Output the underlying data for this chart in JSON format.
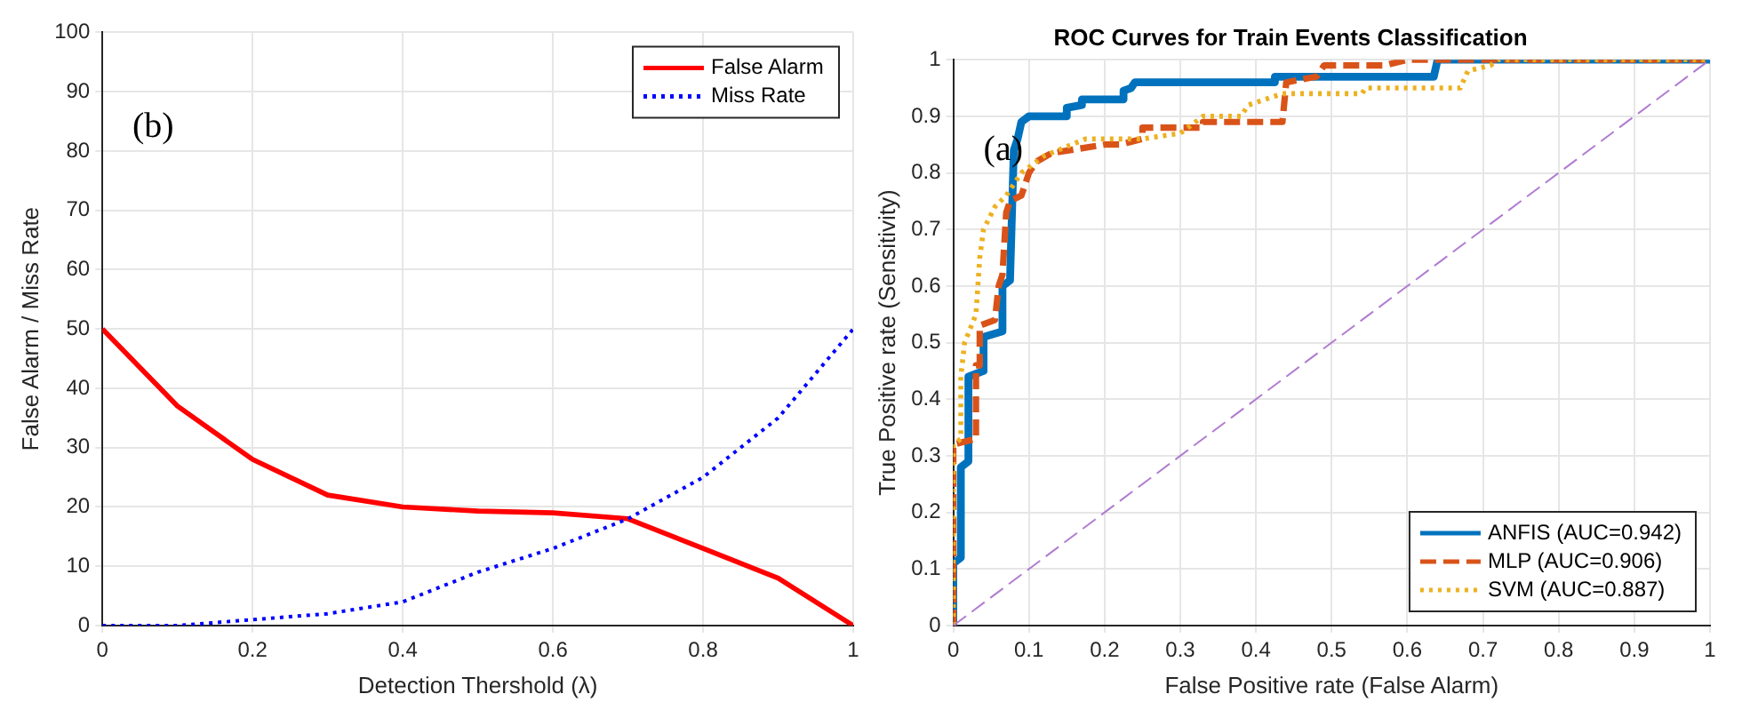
{
  "chart_data": [
    {
      "type": "line",
      "xlabel": "Detection Thershold (λ)",
      "ylabel": "False Alarm / Miss Rate",
      "x": [
        0,
        0.1,
        0.2,
        0.3,
        0.4,
        0.5,
        0.6,
        0.7,
        0.8,
        0.9,
        1
      ],
      "series": [
        {
          "name": "False Alarm",
          "color": "#ff0000",
          "line_style": "solid",
          "values": [
            50,
            37,
            28,
            22,
            20,
            19.3,
            19,
            18,
            13,
            8,
            0
          ]
        },
        {
          "name": "Miss Rate",
          "color": "#0000ff",
          "line_style": "dotted",
          "values": [
            0,
            0,
            1,
            2,
            4,
            9,
            13,
            18,
            25,
            35,
            50
          ]
        }
      ],
      "xlim": [
        0,
        1
      ],
      "xticks": [
        0,
        0.2,
        0.4,
        0.6,
        0.8,
        1
      ],
      "ylim": [
        0,
        100
      ],
      "yticks": [
        0,
        10,
        20,
        30,
        40,
        50,
        60,
        70,
        80,
        90,
        100
      ],
      "grid": true,
      "legend": "top right",
      "marker": "none",
      "annotations": [
        "(b)"
      ]
    },
    {
      "type": "line",
      "title": "ROC Curves for Train Events Classification",
      "xlabel": "False Positive rate (False Alarm)",
      "ylabel": "True Positive rate (Sensitivity)",
      "series": [
        {
          "name": "ANFIS (AUC=0.942)",
          "color": "#0072bd",
          "line_style": "solid",
          "x": [
            0,
            0,
            0.01,
            0.01,
            0.02,
            0.02,
            0.04,
            0.04,
            0.065,
            0.065,
            0.075,
            0.08,
            0.085,
            0.09,
            0.1,
            0.15,
            0.15,
            0.17,
            0.17,
            0.225,
            0.225,
            0.235,
            0.24,
            0.425,
            0.425,
            0.635,
            0.64,
            1
          ],
          "values": [
            0,
            0.11,
            0.12,
            0.28,
            0.29,
            0.44,
            0.45,
            0.51,
            0.52,
            0.6,
            0.61,
            0.84,
            0.86,
            0.89,
            0.9,
            0.9,
            0.915,
            0.92,
            0.93,
            0.93,
            0.945,
            0.95,
            0.96,
            0.96,
            0.97,
            0.97,
            1,
            1
          ]
        },
        {
          "name": "MLP (AUC=0.906)",
          "color": "#d95319",
          "line_style": "dashed",
          "x": [
            0,
            0,
            0.03,
            0.03,
            0.035,
            0.035,
            0.055,
            0.06,
            0.065,
            0.07,
            0.075,
            0.09,
            0.1,
            0.11,
            0.13,
            0.2,
            0.22,
            0.25,
            0.25,
            0.33,
            0.33,
            0.435,
            0.44,
            0.48,
            0.49,
            0.57,
            0.6,
            1
          ],
          "values": [
            0,
            0.32,
            0.33,
            0.46,
            0.46,
            0.53,
            0.54,
            0.6,
            0.62,
            0.73,
            0.75,
            0.76,
            0.8,
            0.82,
            0.835,
            0.85,
            0.85,
            0.86,
            0.88,
            0.88,
            0.89,
            0.89,
            0.96,
            0.97,
            0.99,
            0.99,
            1,
            1
          ]
        },
        {
          "name": "SVM (AUC=0.887)",
          "color": "#edb120",
          "line_style": "dotted",
          "x": [
            0,
            0,
            0.01,
            0.01,
            0.015,
            0.03,
            0.035,
            0.04,
            0.055,
            0.07,
            0.09,
            0.1,
            0.12,
            0.175,
            0.25,
            0.3,
            0.33,
            0.38,
            0.39,
            0.435,
            0.54,
            0.545,
            0.67,
            0.68,
            0.71,
            0.72,
            1
          ],
          "values": [
            0,
            0.32,
            0.33,
            0.44,
            0.5,
            0.55,
            0.65,
            0.7,
            0.74,
            0.76,
            0.8,
            0.81,
            0.83,
            0.86,
            0.86,
            0.87,
            0.9,
            0.9,
            0.92,
            0.94,
            0.94,
            0.95,
            0.95,
            0.98,
            0.99,
            1,
            1
          ]
        },
        {
          "color": "#b07cd0",
          "line_style": "dashed",
          "x": [
            0,
            1
          ],
          "values": [
            0,
            1
          ]
        }
      ],
      "xlim": [
        0,
        1
      ],
      "xticks": [
        0,
        0.1,
        0.2,
        0.3,
        0.4,
        0.5,
        0.6,
        0.7,
        0.8,
        0.9,
        1
      ],
      "ylim": [
        0,
        1
      ],
      "yticks": [
        0,
        0.1,
        0.2,
        0.3,
        0.4,
        0.5,
        0.6,
        0.7,
        0.8,
        0.9,
        1
      ],
      "grid": true,
      "legend": "bottom right",
      "marker": "none",
      "annotations": [
        "(a)"
      ]
    }
  ]
}
